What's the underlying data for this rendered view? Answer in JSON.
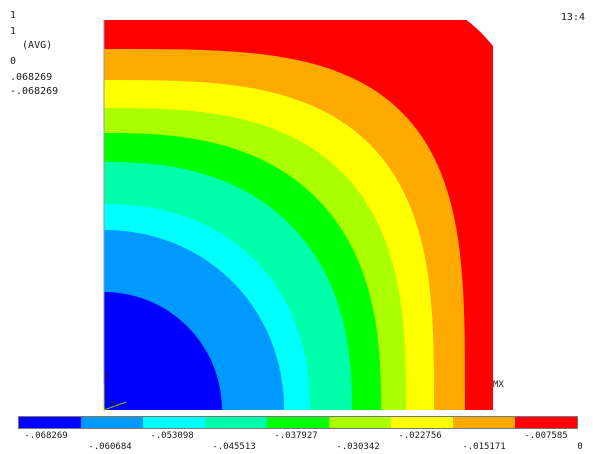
{
  "info": {
    "lines": [
      "1",
      "1",
      "  (AVG)",
      "0",
      ".068269",
      "-.068269"
    ],
    "time": "13:4"
  },
  "axes": {
    "y_label": "Y",
    "x_label": "X",
    "mx_label": "MX"
  },
  "contour_colors": [
    "#0000ff",
    "#0099ff",
    "#00ffff",
    "#00ffaa",
    "#00ff00",
    "#aaff00",
    "#ffff00",
    "#ffaa00",
    "#ff0000"
  ],
  "legend": {
    "values_top": [
      "-.068269",
      "-.053098",
      "-.037927",
      "-.022756",
      "-.007585"
    ],
    "values_bottom": [
      "-.060684",
      "-.045513",
      "-.030342",
      "-.015171",
      "0"
    ]
  }
}
